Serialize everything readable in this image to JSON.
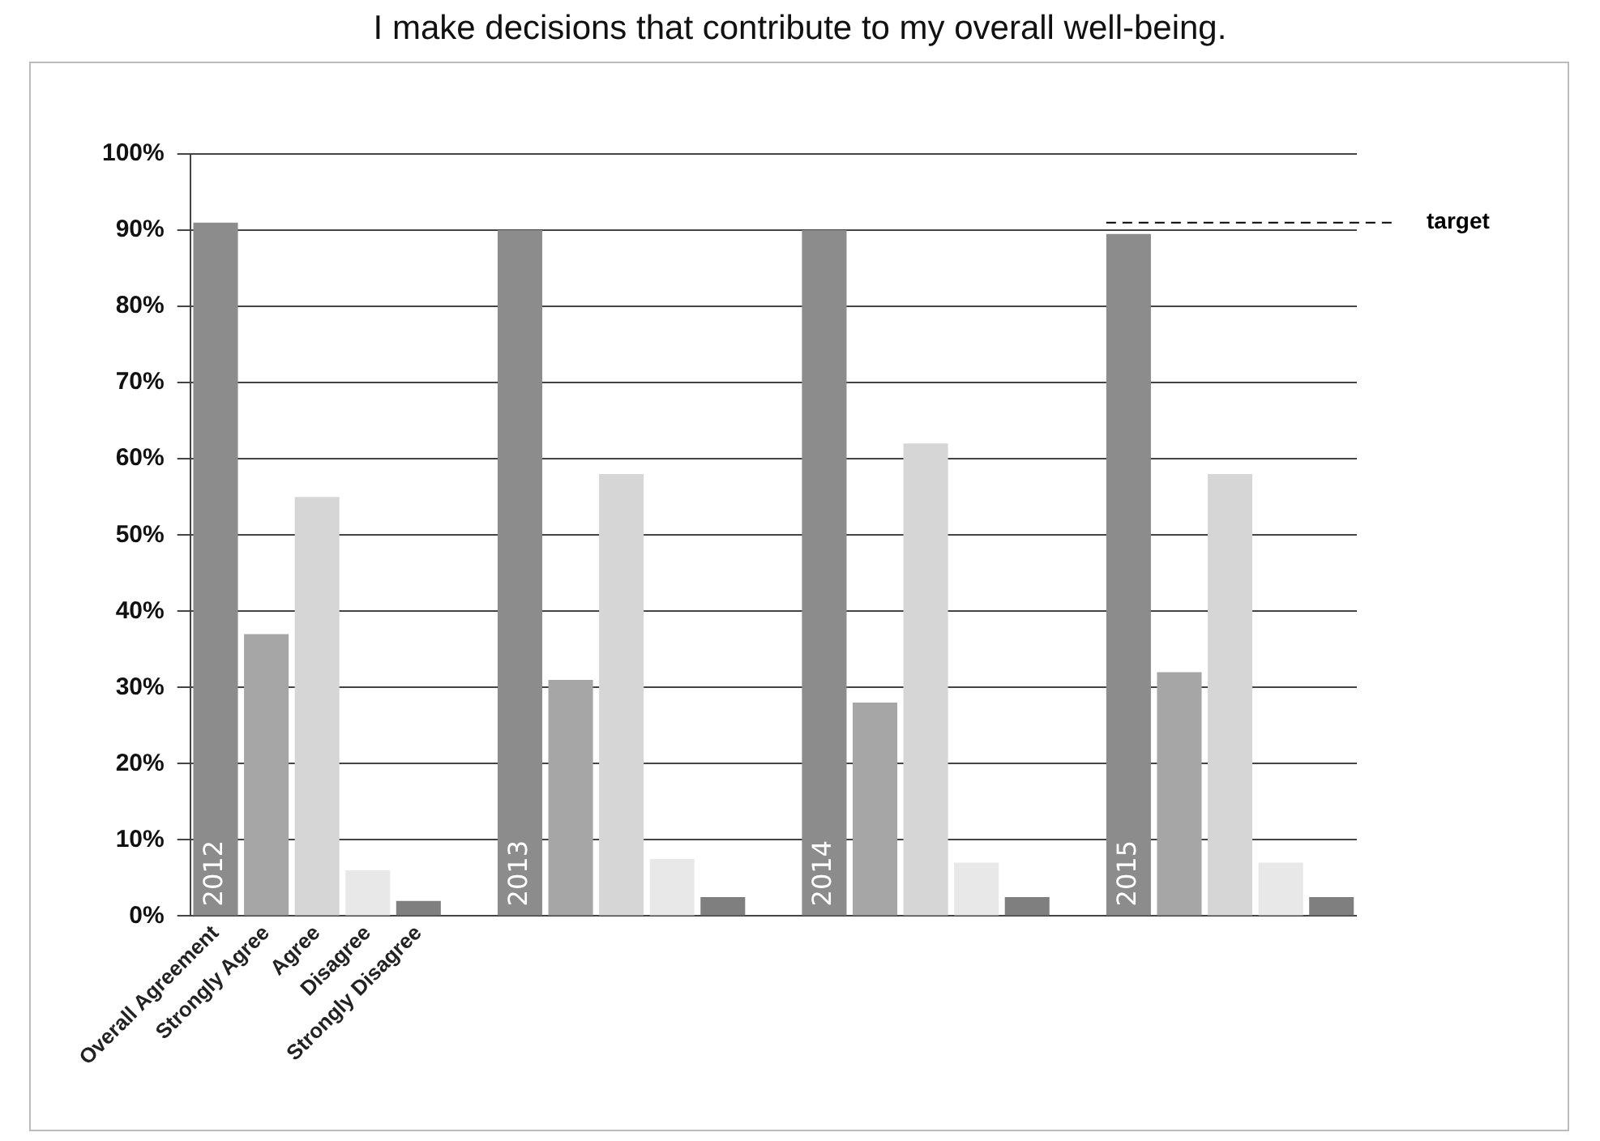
{
  "chart_data": {
    "type": "bar",
    "title": "I make decisions that contribute to my overall well-being.",
    "categories": [
      "Overall Agreement",
      "Strongly Agree",
      "Agree",
      "Disagree",
      "Strongly Disagree",
      null,
      null,
      null,
      null,
      null,
      null,
      null,
      null,
      null,
      null,
      null,
      null,
      null,
      null,
      null,
      null,
      null,
      null
    ],
    "values": [
      91,
      37,
      55,
      6,
      2,
      null,
      90,
      31,
      58,
      7.5,
      2.5,
      null,
      90,
      28,
      62,
      7,
      2.5,
      null,
      89.5,
      32,
      58,
      7,
      2.5
    ],
    "colors": [
      "#8c8c8c",
      "#a6a6a6",
      "#d6d6d6",
      "#e8e8e8",
      "#7f7f7f",
      null,
      "#8c8c8c",
      "#a6a6a6",
      "#d6d6d6",
      "#e8e8e8",
      "#7f7f7f",
      null,
      "#8c8c8c",
      "#a6a6a6",
      "#d6d6d6",
      "#e8e8e8",
      "#7f7f7f",
      null,
      "#8c8c8c",
      "#a6a6a6",
      "#d6d6d6",
      "#e8e8e8",
      "#7f7f7f"
    ],
    "ylim": [
      0,
      100
    ],
    "yticks": [
      {
        "value": 0,
        "label": "0%"
      },
      {
        "value": 10,
        "label": "10%"
      },
      {
        "value": 20,
        "label": "20%"
      },
      {
        "value": 30,
        "label": "30%"
      },
      {
        "value": 40,
        "label": "40%"
      },
      {
        "value": 50,
        "label": "50%"
      },
      {
        "value": 60,
        "label": "60%"
      },
      {
        "value": 70,
        "label": "70%"
      },
      {
        "value": 80,
        "label": "80%"
      },
      {
        "value": 90,
        "label": "90%"
      },
      {
        "value": 100,
        "label": "100%"
      }
    ],
    "grid": "y",
    "legend": false,
    "annotations": [
      "2012",
      "2013",
      "2014",
      "2015"
    ],
    "ref_lines": [
      {
        "axis": "y",
        "value": 91,
        "label": "target",
        "color": "#000000",
        "line_style": "dashed"
      }
    ]
  }
}
